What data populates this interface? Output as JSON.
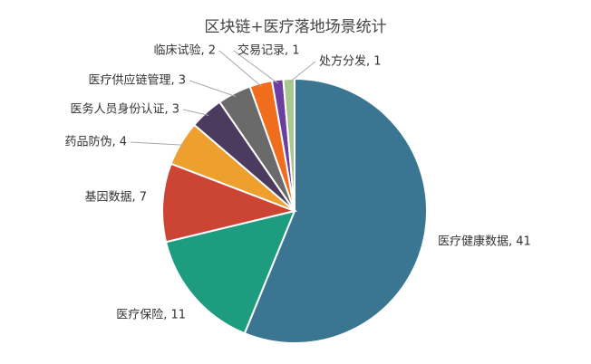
{
  "chart_data": {
    "type": "pie",
    "title": "区块链+医疗落地场景统计",
    "values": [
      41,
      11,
      7,
      4,
      3,
      3,
      2,
      1,
      1
    ],
    "value_labels": [
      "医疗健康数据, 41",
      "医疗保险, 11",
      "基因数据, 7",
      "药品防伪, 4",
      "医务人员身份认证, 3",
      "医疗供应链管理, 3",
      "临床试验, 2",
      "交易记录, 1",
      "处方分发, 1"
    ],
    "colors": [
      "#3a7691",
      "#1e9c80",
      "#cc4434",
      "#eea02f",
      "#4b3b5f",
      "#6a6a6a",
      "#f06d1e",
      "#6b3fa0",
      "#a9c891"
    ]
  }
}
